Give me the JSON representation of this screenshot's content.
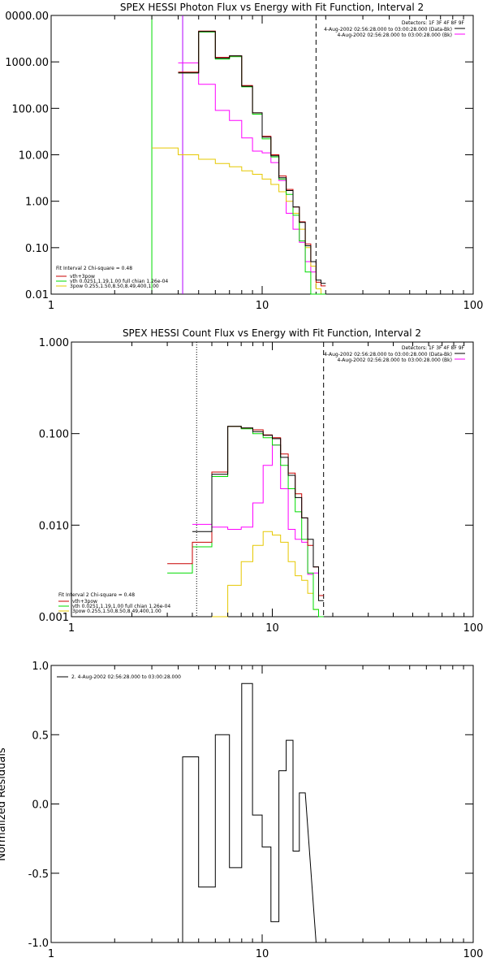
{
  "chart_data": [
    {
      "type": "line",
      "title": "SPEX HESSI Photon Flux vs Energy with Fit Function, Interval 2",
      "xlabel": "",
      "ylabel": "",
      "xscale": "log",
      "yscale": "log",
      "xlim": [
        1,
        100
      ],
      "ylim": [
        0.01,
        10000
      ],
      "xticks": [
        "1",
        "10"
      ],
      "xtick_values": [
        1,
        10
      ],
      "yticks": [
        "0.01",
        "0.10",
        "1.00",
        "10.00",
        "100.00",
        "1000.00",
        "0000.00"
      ],
      "ytick_values": [
        0.01,
        0.1,
        1,
        10,
        100,
        1000,
        10000
      ],
      "legend_topright": [
        "Detectors: 1F 3F 4F 8F 9F",
        "4-Aug-2002 02:56:28.000 to 03:00:28.000 (Data-Bk)",
        "4-Aug-2002 02:56:28.000 to 03:00:28.000 (Bk)"
      ],
      "legend_bottomleft": [
        "Fit Interval 2   Chi-square = 0.48",
        "vth+3pow",
        "vth 0.0251,1.19,1.00  full chian 1.26e-04",
        "3pow 0.255,1.50,8.50,8.49,400,1.00"
      ],
      "series_colors": [
        "#000000",
        "#c80000",
        "#00dc00",
        "#e6c800",
        "#ff00ff"
      ],
      "bin_edges": [
        3.0,
        4.0,
        5.0,
        6.0,
        7.0,
        8.0,
        9.0,
        10.0,
        11.0,
        12.0,
        13.0,
        14.0,
        15.0,
        16.0,
        17.0,
        18.0,
        19.0,
        20.0
      ],
      "series": [
        {
          "name": "Data-Bk",
          "values": [
            null,
            580,
            4500,
            1200,
            1350,
            300,
            80,
            24,
            9.5,
            3.2,
            1.7,
            0.75,
            0.35,
            0.11,
            0.05,
            0.02,
            0.017
          ]
        },
        {
          "name": "vth+3pow",
          "values": [
            null,
            600,
            4600,
            1250,
            1350,
            310,
            80,
            25,
            10,
            3.5,
            1.8,
            0.75,
            0.36,
            0.12,
            0.05,
            0.018,
            0.015
          ]
        },
        {
          "name": "vth",
          "values": [
            null,
            580,
            4400,
            1150,
            1300,
            290,
            75,
            22,
            9,
            3,
            1.4,
            0.5,
            0.14,
            0.03,
            0.01,
            0.01,
            0.01
          ]
        },
        {
          "name": "3pow",
          "values": [
            14,
            10,
            8,
            6.5,
            5.5,
            4.5,
            3.8,
            3,
            2.3,
            1.6,
            1.0,
            0.55,
            0.25,
            0.1,
            0.04,
            0.013,
            0.01
          ]
        },
        {
          "name": "Bk",
          "values": [
            null,
            950,
            330,
            90,
            55,
            23,
            12,
            11,
            6.8,
            2.8,
            0.55,
            0.25,
            0.13,
            0.05,
            0.03,
            null,
            null
          ]
        }
      ],
      "vlines": [
        4.2,
        18.0
      ]
    },
    {
      "type": "line",
      "title": "SPEX HESSI Count Flux vs Energy with Fit Function, Interval 2",
      "xlabel": "",
      "ylabel": "",
      "xscale": "log",
      "yscale": "log",
      "xlim": [
        1,
        100
      ],
      "ylim": [
        0.001,
        1
      ],
      "xticks": [
        "1",
        "10"
      ],
      "xtick_values": [
        1,
        10
      ],
      "yticks": [
        "0.001",
        "0.010",
        "0.100",
        "1.000"
      ],
      "ytick_values": [
        0.001,
        0.01,
        0.1,
        1
      ],
      "legend_topright": [
        "Detectors: 1F 3F 4F 8F 9F",
        "4-Aug-2002 02:56:28.000 to 03:00:28.000 (Data-Bk)",
        "4-Aug-2002 02:56:28.000 to 03:00:28.000 (Bk)"
      ],
      "legend_bottomleft": [
        "Fit Interval 2   Chi-square = 0.48",
        "vth+3pow",
        "vth 0.0251,1.19,1.00  full chian 1.26e-04",
        "3pow 0.255,1.50,8.50,8.49,400,1.00"
      ],
      "series_colors": [
        "#000000",
        "#c80000",
        "#00dc00",
        "#e6c800",
        "#ff00ff"
      ],
      "bin_edges": [
        3.0,
        4.0,
        5.0,
        6.0,
        7.0,
        8.0,
        9.0,
        10.0,
        11.0,
        12.0,
        13.0,
        14.0,
        15.0,
        16.0,
        17.0,
        18.0,
        19.0,
        20.0
      ],
      "series": [
        {
          "name": "Data-Bk",
          "values": [
            null,
            0.0085,
            0.036,
            0.12,
            0.115,
            0.105,
            0.096,
            0.088,
            0.055,
            0.035,
            0.02,
            0.012,
            0.007,
            0.0035,
            0.0015,
            null,
            null
          ]
        },
        {
          "name": "vth+3pow",
          "values": [
            0.0038,
            0.0065,
            0.038,
            0.12,
            0.115,
            0.11,
            0.097,
            0.09,
            0.06,
            0.037,
            0.022,
            0.012,
            0.006,
            0.0035,
            0.0017,
            null,
            null
          ]
        },
        {
          "name": "vth",
          "values": [
            0.003,
            0.0058,
            0.034,
            0.12,
            0.113,
            0.1,
            0.09,
            0.075,
            0.045,
            0.025,
            0.014,
            0.007,
            0.003,
            0.0012,
            0.001,
            null,
            null
          ]
        },
        {
          "name": "3pow",
          "values": [
            null,
            null,
            0.001,
            0.0022,
            0.004,
            0.006,
            0.0085,
            0.0078,
            0.0065,
            0.004,
            0.0028,
            0.0025,
            0.0018,
            0.0012,
            null,
            null,
            null
          ]
        },
        {
          "name": "Bk",
          "values": [
            null,
            0.0102,
            0.0095,
            0.009,
            0.0095,
            0.0175,
            0.045,
            0.075,
            0.025,
            0.009,
            0.007,
            0.0065,
            0.0029,
            0.003,
            null,
            null,
            null
          ]
        }
      ],
      "vlines": [
        4.2,
        18.0
      ],
      "dotted_vline": 4.2
    },
    {
      "type": "line",
      "title": "",
      "xlabel": "",
      "ylabel": "Normalized Residuals",
      "xscale": "log",
      "xlim": [
        1,
        100
      ],
      "ylim": [
        -1,
        1
      ],
      "xticks": [
        "1",
        "10",
        "100"
      ],
      "xtick_values": [
        1,
        10,
        100
      ],
      "yticks": [
        "-1.0",
        "-0.5",
        "0.0",
        "0.5",
        "1.0"
      ],
      "ytick_values": [
        -1,
        -0.5,
        0,
        0.5,
        1
      ],
      "legend": "2. 4-Aug-2002 02:56:28.000 to 03:00:28.000",
      "bin_edges": [
        4.2,
        5.0,
        6.0,
        7.0,
        8.0,
        9.0,
        10.0,
        11.0,
        12.0,
        13.0,
        14.0,
        15.0,
        16.0,
        17.0,
        18.0
      ],
      "values": [
        0.34,
        -0.6,
        0.5,
        -0.46,
        0.87,
        -0.08,
        -0.31,
        -0.85,
        0.24,
        0.46,
        -0.34,
        0.08,
        null,
        null
      ]
    }
  ]
}
